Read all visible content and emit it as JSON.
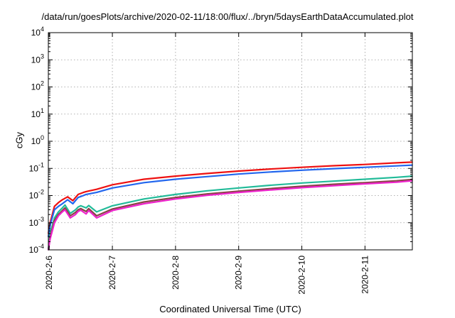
{
  "chart_data": {
    "type": "line",
    "title": "/data/run/goesPlots/archive/2020-02-11/18:00/flux/../bryn/5daysEarthDataAccumulated.plot",
    "xlabel": "Coordinated Universal Time (UTC)",
    "ylabel": "cGy",
    "x_type": "date",
    "xlim": [
      "2020-02-05T23:40",
      "2020-02-11T18:00"
    ],
    "x_ticks": [
      "2020-2-6",
      "2020-2-7",
      "2020-2-8",
      "2020-2-9",
      "2020-2-10",
      "2020-2-11"
    ],
    "y_scale": "log",
    "ylim": [
      0.0001,
      10000
    ],
    "y_ticks": [
      {
        "base": "10",
        "exp": "-4"
      },
      {
        "base": "10",
        "exp": "-3"
      },
      {
        "base": "10",
        "exp": "-2"
      },
      {
        "base": "10",
        "exp": "-1"
      },
      {
        "base": "10",
        "exp": "0"
      },
      {
        "base": "10",
        "exp": "1"
      },
      {
        "base": "10",
        "exp": "2"
      },
      {
        "base": "10",
        "exp": "3"
      },
      {
        "base": "10",
        "exp": "4"
      }
    ],
    "grid": true,
    "series": [
      {
        "color": "#ee1111",
        "x": [
          "2020-02-05T23:40",
          "2020-02-06T00:20",
          "2020-02-06T02:00",
          "2020-02-06T03:30",
          "2020-02-06T05:00",
          "2020-02-06T07:00",
          "2020-02-06T09:00",
          "2020-02-06T11:00",
          "2020-02-06T13:00",
          "2020-02-06T14:00",
          "2020-02-06T18:00",
          "2020-02-07T00:00",
          "2020-02-07T12:00",
          "2020-02-08T00:00",
          "2020-02-08T12:00",
          "2020-02-09T00:00",
          "2020-02-09T12:00",
          "2020-02-10T00:00",
          "2020-02-10T12:00",
          "2020-02-11T00:00",
          "2020-02-11T12:00",
          "2020-02-11T18:00"
        ],
        "y": [
          0.0004,
          0.001,
          0.004,
          0.0055,
          0.007,
          0.009,
          0.0065,
          0.011,
          0.013,
          0.014,
          0.017,
          0.025,
          0.04,
          0.052,
          0.065,
          0.08,
          0.095,
          0.11,
          0.125,
          0.14,
          0.16,
          0.17
        ]
      },
      {
        "color": "#2266ee",
        "x": [
          "2020-02-05T23:40",
          "2020-02-06T00:20",
          "2020-02-06T02:00",
          "2020-02-06T03:30",
          "2020-02-06T05:00",
          "2020-02-06T07:00",
          "2020-02-06T09:00",
          "2020-02-06T11:00",
          "2020-02-06T13:00",
          "2020-02-06T14:00",
          "2020-02-06T18:00",
          "2020-02-07T00:00",
          "2020-02-07T12:00",
          "2020-02-08T00:00",
          "2020-02-08T12:00",
          "2020-02-09T00:00",
          "2020-02-09T12:00",
          "2020-02-10T00:00",
          "2020-02-10T12:00",
          "2020-02-11T00:00",
          "2020-02-11T12:00",
          "2020-02-11T18:00"
        ],
        "y": [
          0.0003,
          0.0008,
          0.003,
          0.004,
          0.005,
          0.007,
          0.005,
          0.0085,
          0.01,
          0.011,
          0.013,
          0.019,
          0.03,
          0.04,
          0.05,
          0.062,
          0.074,
          0.086,
          0.098,
          0.11,
          0.124,
          0.132
        ]
      },
      {
        "color": "#22bb99",
        "x": [
          "2020-02-05T23:40",
          "2020-02-06T00:20",
          "2020-02-06T02:00",
          "2020-02-06T03:30",
          "2020-02-06T05:00",
          "2020-02-06T06:00",
          "2020-02-06T08:00",
          "2020-02-06T10:00",
          "2020-02-06T11:00",
          "2020-02-06T12:00",
          "2020-02-06T14:00",
          "2020-02-06T15:00",
          "2020-02-06T18:00",
          "2020-02-07T00:00",
          "2020-02-07T12:00",
          "2020-02-08T00:00",
          "2020-02-08T12:00",
          "2020-02-09T00:00",
          "2020-02-09T12:00",
          "2020-02-10T00:00",
          "2020-02-10T12:00",
          "2020-02-11T00:00",
          "2020-02-11T12:00",
          "2020-02-11T18:00"
        ],
        "y": [
          0.0001,
          0.0004,
          0.0015,
          0.0025,
          0.0035,
          0.0045,
          0.0022,
          0.003,
          0.0038,
          0.0042,
          0.0035,
          0.0043,
          0.0025,
          0.0042,
          0.0075,
          0.011,
          0.015,
          0.019,
          0.024,
          0.029,
          0.034,
          0.04,
          0.047,
          0.052
        ]
      },
      {
        "color": "#884444",
        "x": [
          "2020-02-05T23:40",
          "2020-02-06T00:20",
          "2020-02-06T02:00",
          "2020-02-06T03:30",
          "2020-02-06T05:00",
          "2020-02-06T06:00",
          "2020-02-06T08:00",
          "2020-02-06T10:00",
          "2020-02-06T11:00",
          "2020-02-06T12:00",
          "2020-02-06T14:00",
          "2020-02-06T15:00",
          "2020-02-06T18:00",
          "2020-02-07T00:00",
          "2020-02-07T12:00",
          "2020-02-08T00:00",
          "2020-02-08T12:00",
          "2020-02-09T00:00",
          "2020-02-09T12:00",
          "2020-02-10T00:00",
          "2020-02-10T12:00",
          "2020-02-11T00:00",
          "2020-02-11T12:00",
          "2020-02-11T18:00"
        ],
        "y": [
          0.0001,
          0.0003,
          0.0012,
          0.002,
          0.0028,
          0.0035,
          0.0018,
          0.0024,
          0.003,
          0.0033,
          0.0026,
          0.0033,
          0.0018,
          0.0032,
          0.0058,
          0.0085,
          0.0115,
          0.0145,
          0.018,
          0.022,
          0.026,
          0.03,
          0.035,
          0.039
        ]
      },
      {
        "color": "#ee22cc",
        "x": [
          "2020-02-05T23:40",
          "2020-02-06T00:20",
          "2020-02-06T02:00",
          "2020-02-06T03:30",
          "2020-02-06T05:00",
          "2020-02-06T06:00",
          "2020-02-06T08:00",
          "2020-02-06T10:00",
          "2020-02-06T11:00",
          "2020-02-06T12:00",
          "2020-02-06T14:00",
          "2020-02-06T15:00",
          "2020-02-06T18:00",
          "2020-02-07T00:00",
          "2020-02-07T12:00",
          "2020-02-08T00:00",
          "2020-02-08T12:00",
          "2020-02-09T00:00",
          "2020-02-09T12:00",
          "2020-02-10T00:00",
          "2020-02-10T12:00",
          "2020-02-11T00:00",
          "2020-02-11T12:00",
          "2020-02-11T18:00"
        ],
        "y": [
          0.0001,
          0.00025,
          0.001,
          0.0018,
          0.0025,
          0.003,
          0.0015,
          0.002,
          0.0026,
          0.0029,
          0.0021,
          0.0028,
          0.0015,
          0.0028,
          0.005,
          0.0075,
          0.0102,
          0.013,
          0.016,
          0.0195,
          0.023,
          0.027,
          0.031,
          0.035
        ]
      }
    ]
  }
}
